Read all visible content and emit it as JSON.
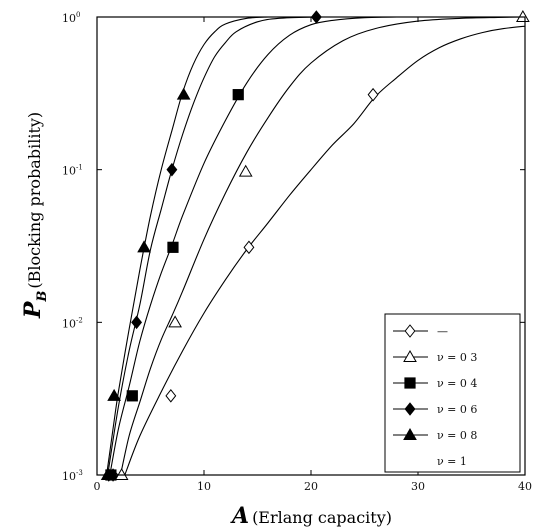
{
  "chart_data": {
    "type": "line",
    "xlabel_main": "A",
    "xlabel_rest": "(Erlang capacity)",
    "ylabel_main": "P",
    "ylabel_sub": "B",
    "ylabel_rest": "(Blocking probability)",
    "xlim": [
      0,
      40
    ],
    "ylim": [
      0.001,
      1
    ],
    "yscale": "log",
    "grid": false,
    "legend_position": "bottom-right",
    "x_ticks": [
      0,
      10,
      20,
      30,
      40
    ],
    "x_tick_labels": [
      "0",
      "10",
      "20",
      "30",
      "40"
    ],
    "y_ticks": [
      0.001,
      0.01,
      0.1,
      1
    ],
    "y_tick_labels": [
      [
        "10",
        "-3"
      ],
      [
        "10",
        "-2"
      ],
      [
        "10",
        "-1"
      ],
      [
        "10",
        "0"
      ]
    ],
    "series": [
      {
        "name": "—",
        "marker": "diamond-open",
        "curve": [
          [
            2.6,
            0.001
          ],
          [
            4,
            0.0018
          ],
          [
            6,
            0.0035
          ],
          [
            8,
            0.0065
          ],
          [
            10,
            0.0115
          ],
          [
            12,
            0.019
          ],
          [
            14,
            0.03
          ],
          [
            16,
            0.045
          ],
          [
            18,
            0.068
          ],
          [
            20,
            0.1
          ],
          [
            22,
            0.145
          ],
          [
            24,
            0.2
          ],
          [
            26,
            0.3
          ],
          [
            28,
            0.4
          ],
          [
            30,
            0.52
          ],
          [
            32,
            0.63
          ],
          [
            34,
            0.72
          ],
          [
            36,
            0.79
          ],
          [
            38,
            0.84
          ],
          [
            40,
            0.87
          ]
        ],
        "markers": [
          [
            1.5,
            0.001
          ],
          [
            6.9,
            0.0033
          ],
          [
            14.2,
            0.031
          ],
          [
            25.8,
            0.31
          ]
        ]
      },
      {
        "name": "ν = 0 3",
        "marker": "triangle-open",
        "curve": [
          [
            2.2,
            0.001
          ],
          [
            3,
            0.0018
          ],
          [
            4,
            0.003
          ],
          [
            5,
            0.005
          ],
          [
            6,
            0.0077
          ],
          [
            7,
            0.011
          ],
          [
            8,
            0.016
          ],
          [
            10,
            0.035
          ],
          [
            12,
            0.07
          ],
          [
            14,
            0.13
          ],
          [
            16,
            0.22
          ],
          [
            18,
            0.35
          ],
          [
            20,
            0.5
          ],
          [
            23,
            0.7
          ],
          [
            26,
            0.84
          ],
          [
            30,
            0.94
          ],
          [
            34,
            0.98
          ],
          [
            38,
            0.995
          ],
          [
            39.8,
            1
          ]
        ],
        "markers": [
          [
            2.3,
            0.001
          ],
          [
            7.3,
            0.01
          ],
          [
            13.9,
            0.097
          ],
          [
            39.8,
            1
          ]
        ]
      },
      {
        "name": "ν = 0 4",
        "marker": "square-filled",
        "curve": [
          [
            1.2,
            0.001
          ],
          [
            2,
            0.002
          ],
          [
            3,
            0.0038
          ],
          [
            4,
            0.0075
          ],
          [
            5,
            0.013
          ],
          [
            6,
            0.021
          ],
          [
            7,
            0.032
          ],
          [
            8,
            0.05
          ],
          [
            10,
            0.11
          ],
          [
            12,
            0.21
          ],
          [
            14,
            0.37
          ],
          [
            16,
            0.57
          ],
          [
            18,
            0.76
          ],
          [
            20,
            0.89
          ],
          [
            22,
            0.95
          ],
          [
            25,
            0.99
          ],
          [
            28,
            1
          ]
        ],
        "markers": [
          [
            1.3,
            0.001
          ],
          [
            3.3,
            0.0033
          ],
          [
            7.1,
            0.031
          ],
          [
            13.2,
            0.31
          ]
        ]
      },
      {
        "name": "ν = 0 6",
        "marker": "diamond-filled",
        "curve": [
          [
            1,
            0.001
          ],
          [
            2,
            0.0028
          ],
          [
            3,
            0.0065
          ],
          [
            4,
            0.013
          ],
          [
            5,
            0.03
          ],
          [
            6,
            0.055
          ],
          [
            7,
            0.1
          ],
          [
            8,
            0.17
          ],
          [
            9,
            0.27
          ],
          [
            10,
            0.4
          ],
          [
            11,
            0.55
          ],
          [
            12,
            0.68
          ],
          [
            13,
            0.8
          ],
          [
            15,
            0.93
          ],
          [
            17,
            0.98
          ],
          [
            20.5,
            1
          ]
        ],
        "markers": [
          [
            1.1,
            0.001
          ],
          [
            3.7,
            0.01
          ],
          [
            7,
            0.1
          ],
          [
            20.5,
            1
          ]
        ]
      },
      {
        "name": "ν = 0 8",
        "marker": "triangle-filled",
        "curve": [
          [
            0.9,
            0.001
          ],
          [
            1.5,
            0.002
          ],
          [
            2,
            0.0035
          ],
          [
            3,
            0.009
          ],
          [
            4,
            0.022
          ],
          [
            5,
            0.05
          ],
          [
            6,
            0.1
          ],
          [
            7,
            0.18
          ],
          [
            8,
            0.32
          ],
          [
            9,
            0.49
          ],
          [
            10,
            0.66
          ],
          [
            11,
            0.8
          ],
          [
            12,
            0.9
          ],
          [
            14,
            0.98
          ],
          [
            16,
            1
          ]
        ],
        "markers": [
          [
            1,
            0.001
          ],
          [
            1.6,
            0.0033
          ],
          [
            4.4,
            0.031
          ],
          [
            8.1,
            0.31
          ]
        ]
      },
      {
        "name": "ν = 1",
        "marker": "none",
        "curve": [],
        "markers": []
      }
    ]
  }
}
